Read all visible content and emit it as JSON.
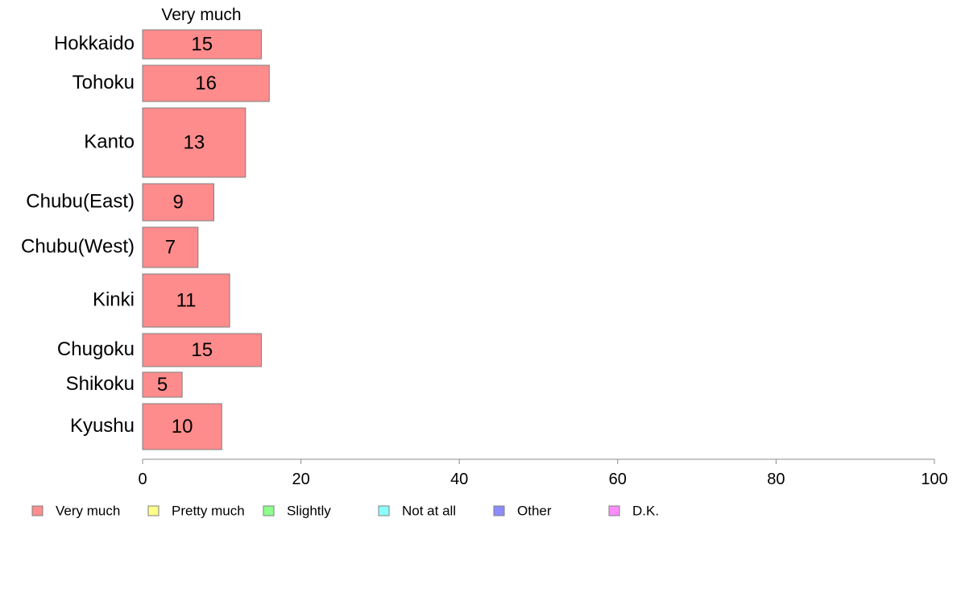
{
  "chart_data": {
    "type": "bar",
    "orientation": "horizontal",
    "stacked": true,
    "title": "Very much",
    "categories": [
      "Hokkaido",
      "Tohoku",
      "Kanto",
      "Chubu(East)",
      "Chubu(West)",
      "Kinki",
      "Chugoku",
      "Shikoku",
      "Kyushu"
    ],
    "series": [
      {
        "name": "Very much",
        "color": "#ff8c8c",
        "values": [
          15,
          16,
          13,
          9,
          7,
          11,
          15,
          5,
          10
        ]
      }
    ],
    "legend": [
      {
        "name": "Very much",
        "color": "#ff8c8c"
      },
      {
        "name": "Pretty much",
        "color": "#ffff8c"
      },
      {
        "name": "Slightly",
        "color": "#8cff8c"
      },
      {
        "name": "Not at all",
        "color": "#8cffff"
      },
      {
        "name": "Other",
        "color": "#8c8cff"
      },
      {
        "name": "D.K.",
        "color": "#ff8cff"
      }
    ],
    "legend_position": "bottom",
    "xlim": [
      0,
      100
    ],
    "xticks": [
      0,
      20,
      40,
      60,
      80,
      100
    ],
    "xlabel": "",
    "ylabel": "",
    "grid": false
  }
}
